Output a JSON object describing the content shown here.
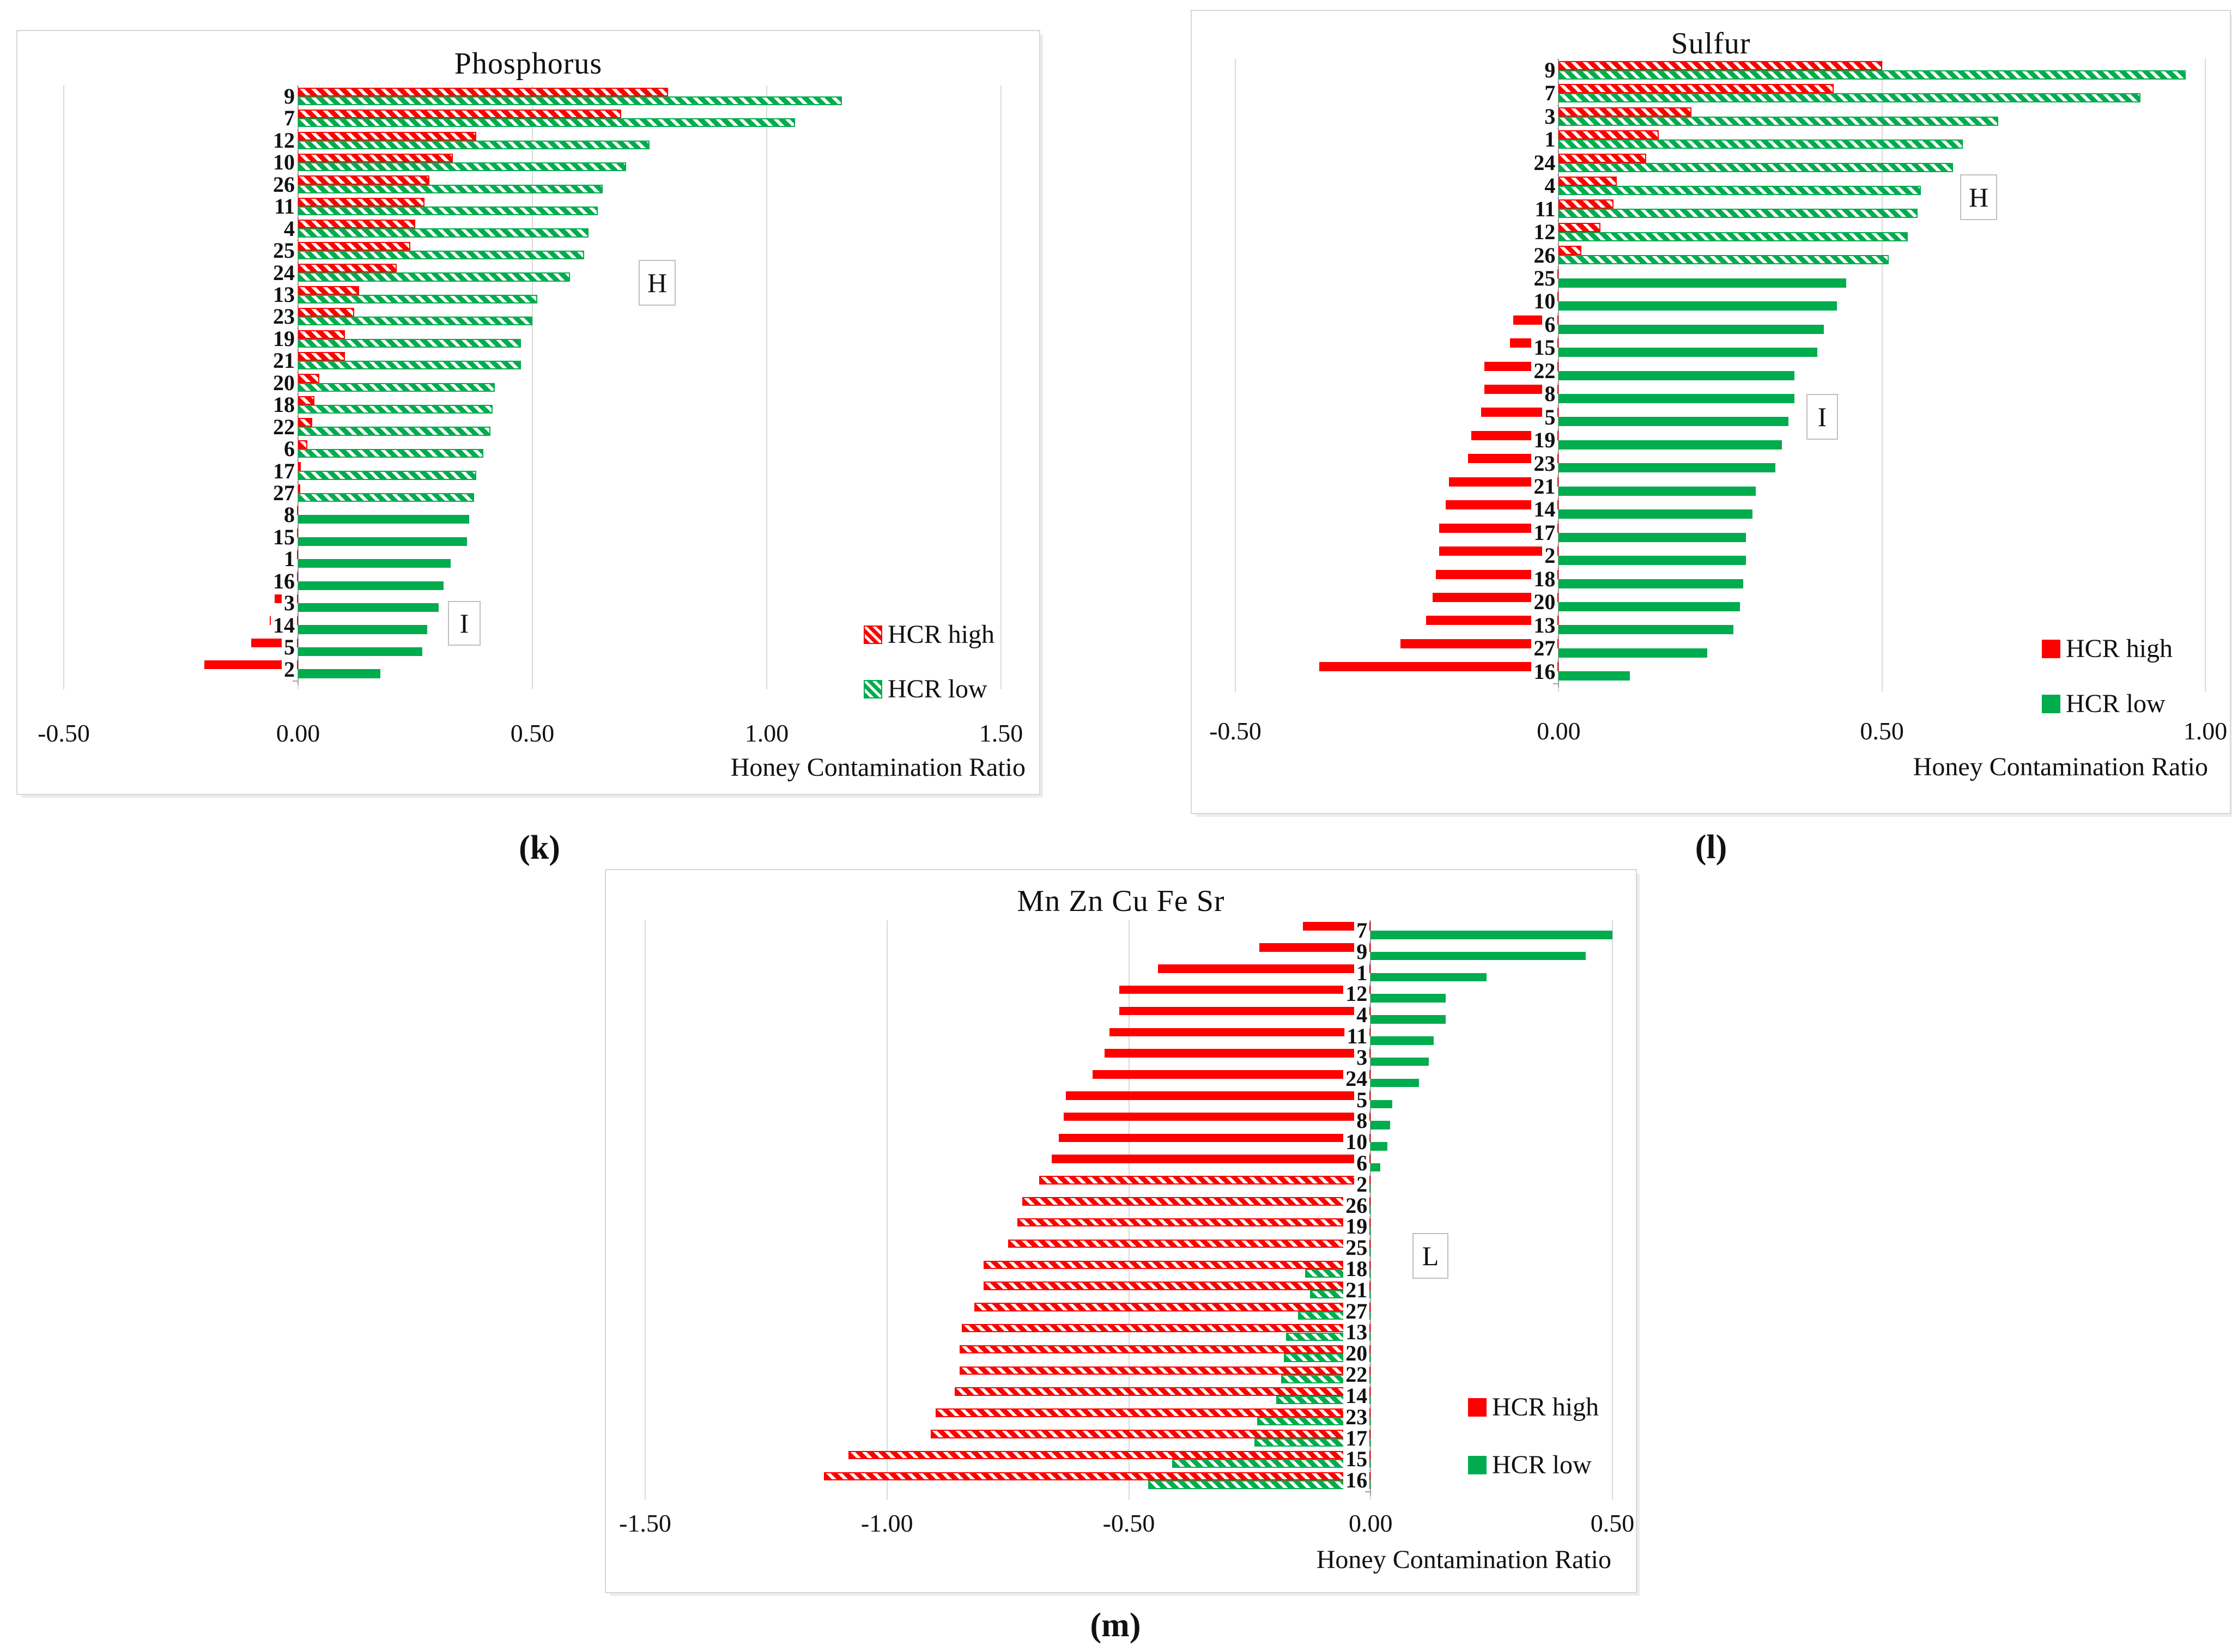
{
  "figure": {
    "captions": [
      "(k)",
      "(l)",
      "(m)"
    ]
  },
  "colors": {
    "hcr_high": "#FF0000",
    "hcr_low": "#00AC4E",
    "gridline": "#D9D9D9",
    "axis_line": "#A0A0A0",
    "annotation_border": "#BFBFBF",
    "panel_border": "#D6D6D6"
  },
  "chart_data": [
    {
      "type": "bar",
      "orientation": "horizontal",
      "title": "Phosphorus",
      "xlabel": "Honey Contamination Ratio",
      "xlim": [
        -0.5,
        1.5
      ],
      "tick_values": [
        -0.5,
        0.0,
        0.5,
        1.0,
        1.5
      ],
      "tick_labels": [
        "-0.50",
        "0.00",
        "0.50",
        "1.00",
        "1.50"
      ],
      "grid": true,
      "legend_position": "inside-lower-right",
      "legend": [
        "HCR high",
        "HCR low"
      ],
      "legend_swatch": "hatched",
      "annotations": [
        {
          "text": "H"
        },
        {
          "text": "I"
        }
      ],
      "hatch_range": [
        0,
        18
      ],
      "categories": [
        "9",
        "7",
        "12",
        "10",
        "26",
        "11",
        "4",
        "25",
        "24",
        "13",
        "23",
        "19",
        "21",
        "20",
        "18",
        "22",
        "6",
        "17",
        "27",
        "8",
        "15",
        "1",
        "16",
        "3",
        "14",
        "5",
        "2"
      ],
      "series": [
        {
          "name": "HCR high",
          "values": [
            0.79,
            0.69,
            0.38,
            0.33,
            0.28,
            0.27,
            0.25,
            0.24,
            0.21,
            0.13,
            0.12,
            0.1,
            0.1,
            0.045,
            0.035,
            0.03,
            0.02,
            0.006,
            0.004,
            -0.01,
            -0.012,
            -0.035,
            -0.04,
            -0.05,
            -0.06,
            -0.1,
            -0.2
          ]
        },
        {
          "name": "HCR low",
          "values": [
            1.16,
            1.06,
            0.75,
            0.7,
            0.65,
            0.64,
            0.62,
            0.61,
            0.58,
            0.51,
            0.5,
            0.475,
            0.475,
            0.42,
            0.415,
            0.41,
            0.395,
            0.38,
            0.375,
            0.365,
            0.36,
            0.325,
            0.31,
            0.3,
            0.275,
            0.265,
            0.175
          ]
        }
      ]
    },
    {
      "type": "bar",
      "orientation": "horizontal",
      "title": "Sulfur",
      "xlabel": "Honey Contamination Ratio",
      "xlim": [
        -0.5,
        1.0
      ],
      "tick_values": [
        -0.5,
        0.0,
        0.5,
        1.0
      ],
      "tick_labels": [
        "-0.50",
        "0.00",
        "0.50",
        "1.00"
      ],
      "grid": true,
      "legend_position": "inside-lower-right",
      "legend": [
        "HCR high",
        "HCR low"
      ],
      "legend_swatch": "solid",
      "annotations": [
        {
          "text": "H"
        },
        {
          "text": "I"
        }
      ],
      "hatch_range": [
        0,
        8
      ],
      "categories": [
        "9",
        "7",
        "3",
        "1",
        "24",
        "4",
        "11",
        "12",
        "26",
        "25",
        "10",
        "6",
        "15",
        "22",
        "8",
        "5",
        "19",
        "23",
        "21",
        "14",
        "17",
        "2",
        "18",
        "20",
        "13",
        "27",
        "16"
      ],
      "series": [
        {
          "name": "HCR high",
          "values": [
            0.5,
            0.425,
            0.205,
            0.155,
            0.135,
            0.09,
            0.085,
            0.065,
            0.035,
            -0.03,
            -0.03,
            -0.07,
            -0.075,
            -0.115,
            -0.115,
            -0.12,
            -0.135,
            -0.14,
            -0.17,
            -0.175,
            -0.185,
            -0.185,
            -0.19,
            -0.195,
            -0.205,
            -0.245,
            -0.37
          ]
        },
        {
          "name": "HCR low",
          "values": [
            0.97,
            0.9,
            0.68,
            0.625,
            0.61,
            0.56,
            0.555,
            0.54,
            0.51,
            0.445,
            0.43,
            0.41,
            0.4,
            0.365,
            0.365,
            0.355,
            0.345,
            0.335,
            0.305,
            0.3,
            0.29,
            0.29,
            0.285,
            0.28,
            0.27,
            0.23,
            0.11
          ]
        }
      ]
    },
    {
      "type": "bar",
      "orientation": "horizontal",
      "title": "Mn Zn Cu Fe Sr",
      "xlabel": "Honey Contamination Ratio",
      "xlim": [
        -1.5,
        0.5
      ],
      "tick_values": [
        -1.5,
        -1.0,
        -0.5,
        0.0,
        0.5
      ],
      "tick_labels": [
        "-1.50",
        "-1.00",
        "-0.50",
        "0.00",
        "0.50"
      ],
      "grid": true,
      "legend_position": "inside-lower-right",
      "legend": [
        "HCR high",
        "HCR low"
      ],
      "legend_swatch": "solid",
      "annotations": [
        {
          "text": "L"
        }
      ],
      "hatch_range": [
        12,
        26
      ],
      "categories": [
        "7",
        "9",
        "1",
        "12",
        "4",
        "11",
        "3",
        "24",
        "5",
        "8",
        "10",
        "6",
        "2",
        "26",
        "19",
        "25",
        "18",
        "21",
        "27",
        "13",
        "20",
        "22",
        "14",
        "23",
        "17",
        "15",
        "16"
      ],
      "series": [
        {
          "name": "HCR high",
          "values": [
            -0.14,
            -0.23,
            -0.44,
            -0.52,
            -0.52,
            -0.54,
            -0.55,
            -0.575,
            -0.63,
            -0.635,
            -0.645,
            -0.66,
            -0.685,
            -0.72,
            -0.73,
            -0.75,
            -0.8,
            -0.8,
            -0.82,
            -0.845,
            -0.85,
            -0.85,
            -0.86,
            -0.9,
            -0.91,
            -1.08,
            -1.13
          ]
        },
        {
          "name": "HCR low",
          "values": [
            0.5,
            0.445,
            0.24,
            0.155,
            0.155,
            0.13,
            0.12,
            0.1,
            0.045,
            0.04,
            0.035,
            0.02,
            -0.015,
            -0.04,
            -0.035,
            -0.035,
            -0.135,
            -0.125,
            -0.15,
            -0.175,
            -0.18,
            -0.185,
            -0.195,
            -0.235,
            -0.24,
            -0.41,
            -0.46
          ]
        }
      ]
    }
  ]
}
